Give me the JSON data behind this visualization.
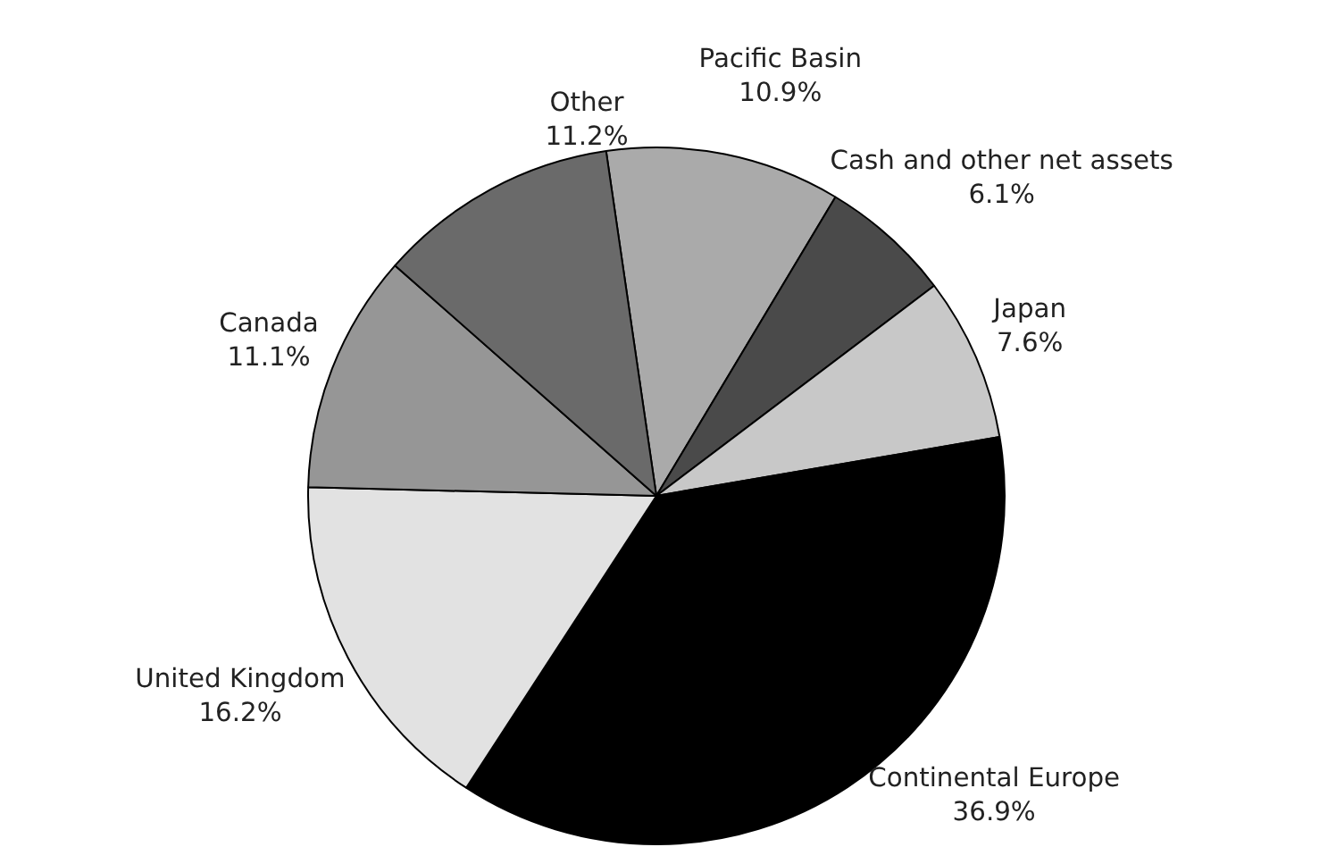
{
  "chart_data": {
    "type": "pie",
    "categories": [
      "Pacific Basin",
      "Cash and other net assets",
      "Japan",
      "Continental Europe",
      "United Kingdom",
      "Canada",
      "Other"
    ],
    "values": [
      10.9,
      6.1,
      7.6,
      36.9,
      16.2,
      11.1,
      11.2
    ],
    "value_labels": [
      "10.9%",
      "6.1%",
      "7.6%",
      "36.9%",
      "16.2%",
      "11.1%",
      "11.2%"
    ],
    "colors": [
      "#aaaaaa",
      "#4a4a4a",
      "#c8c8c8",
      "#000000",
      "#e2e2e2",
      "#969696",
      "#6a6a6a"
    ]
  }
}
